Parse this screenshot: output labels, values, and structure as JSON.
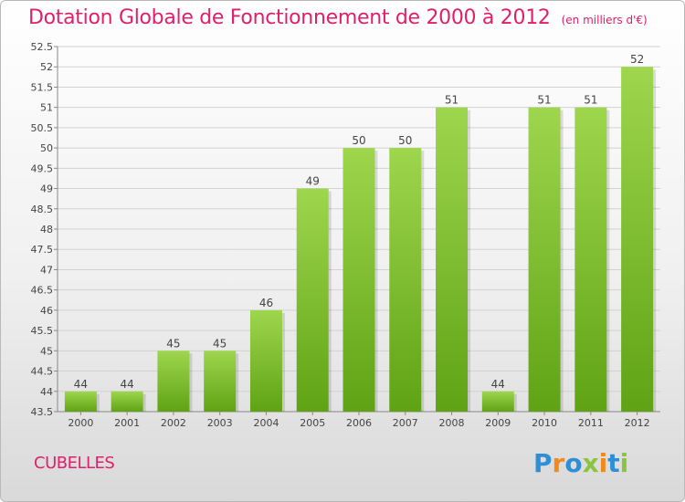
{
  "header": {
    "title": "Dotation Globale de Fonctionnement de 2000 à 2012",
    "unit": "(en milliers d'€)"
  },
  "footer": {
    "commune": "CUBELLES",
    "logo_text": "Proxiti"
  },
  "colors": {
    "title": "#e0206a",
    "bar_light": "#9ed64e",
    "bar_dark": "#5fa314",
    "logo_blue": "#2f8fd6",
    "logo_orange": "#f08a1c",
    "logo_green": "#8bc53f"
  },
  "chart_data": {
    "type": "bar",
    "categories": [
      "2000",
      "2001",
      "2002",
      "2003",
      "2004",
      "2005",
      "2006",
      "2007",
      "2008",
      "2009",
      "2010",
      "2011",
      "2012"
    ],
    "values": [
      44,
      44,
      45,
      45,
      46,
      49,
      50,
      50,
      51,
      44,
      51,
      51,
      52
    ],
    "ylim": [
      43.5,
      52.5
    ],
    "yticks": [
      "43.5",
      "44",
      "44.5",
      "45",
      "45.5",
      "46",
      "46.5",
      "47",
      "47.5",
      "48",
      "48.5",
      "49",
      "49.5",
      "50",
      "50.5",
      "51",
      "51.5",
      "52",
      "52.5"
    ],
    "grid": true
  }
}
